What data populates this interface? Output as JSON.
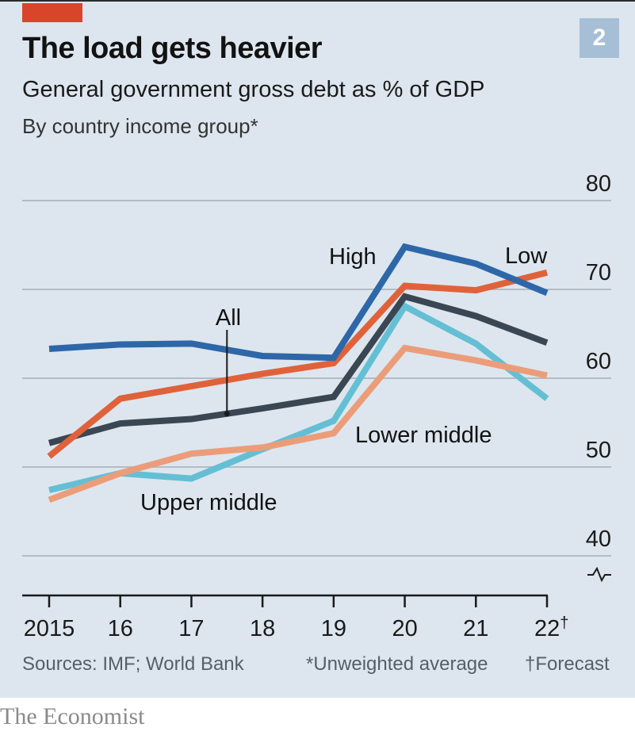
{
  "header": {
    "title": "The load gets heavier",
    "subtitle": "General government gross debt as % of GDP",
    "subsubtitle": "By country income group*",
    "chart_number": "2"
  },
  "footer": {
    "sources": "Sources: IMF; World Bank",
    "note_weighted": "*Unweighted average",
    "note_forecast": "†Forecast",
    "brand": "The Economist"
  },
  "colors": {
    "background": "#dde6ee",
    "accent_tab": "#d9452b",
    "badge": "#a6bfd6",
    "High": "#2e67a8",
    "Low": "#e0623a",
    "All": "#3a4752",
    "Upper middle": "#64bfd4",
    "Lower middle": "#eb9d7a"
  },
  "chart_data": {
    "type": "line",
    "title": "The load gets heavier",
    "subtitle": "General government gross debt as % of GDP",
    "xlabel": "",
    "ylabel": "",
    "x": [
      "2015",
      "16",
      "17",
      "18",
      "19",
      "20",
      "21",
      "22†"
    ],
    "ylim": [
      40,
      80
    ],
    "yticks": [
      "40",
      "50",
      "60",
      "70",
      "80"
    ],
    "y_axis_side": "right",
    "axis_break": true,
    "grid": true,
    "legend": "inline labels",
    "series": [
      {
        "name": "High",
        "label": "High",
        "values": [
          63.3,
          63.8,
          63.9,
          62.5,
          62.3,
          74.8,
          72.9,
          69.6
        ]
      },
      {
        "name": "Low",
        "label": "Low",
        "values": [
          51.2,
          57.7,
          59.1,
          60.5,
          61.7,
          70.4,
          69.9,
          71.9
        ]
      },
      {
        "name": "All",
        "label": "All",
        "values": [
          52.7,
          54.9,
          55.4,
          56.6,
          57.9,
          69.2,
          67.0,
          64.0
        ]
      },
      {
        "name": "Upper middle",
        "label": "Upper middle",
        "values": [
          47.4,
          49.3,
          48.7,
          52.0,
          55.2,
          68.1,
          63.9,
          57.7
        ]
      },
      {
        "name": "Lower middle",
        "label": "Lower middle",
        "values": [
          46.3,
          49.3,
          51.5,
          52.2,
          53.8,
          63.4,
          62.0,
          60.3
        ]
      }
    ],
    "annotations": [
      {
        "text": "High",
        "series": "High"
      },
      {
        "text": "Low",
        "series": "Low"
      },
      {
        "text": "All",
        "series": "All",
        "pointer_at_x": 17.5
      },
      {
        "text": "Upper middle",
        "series": "Upper middle"
      },
      {
        "text": "Lower middle",
        "series": "Lower middle"
      }
    ]
  }
}
